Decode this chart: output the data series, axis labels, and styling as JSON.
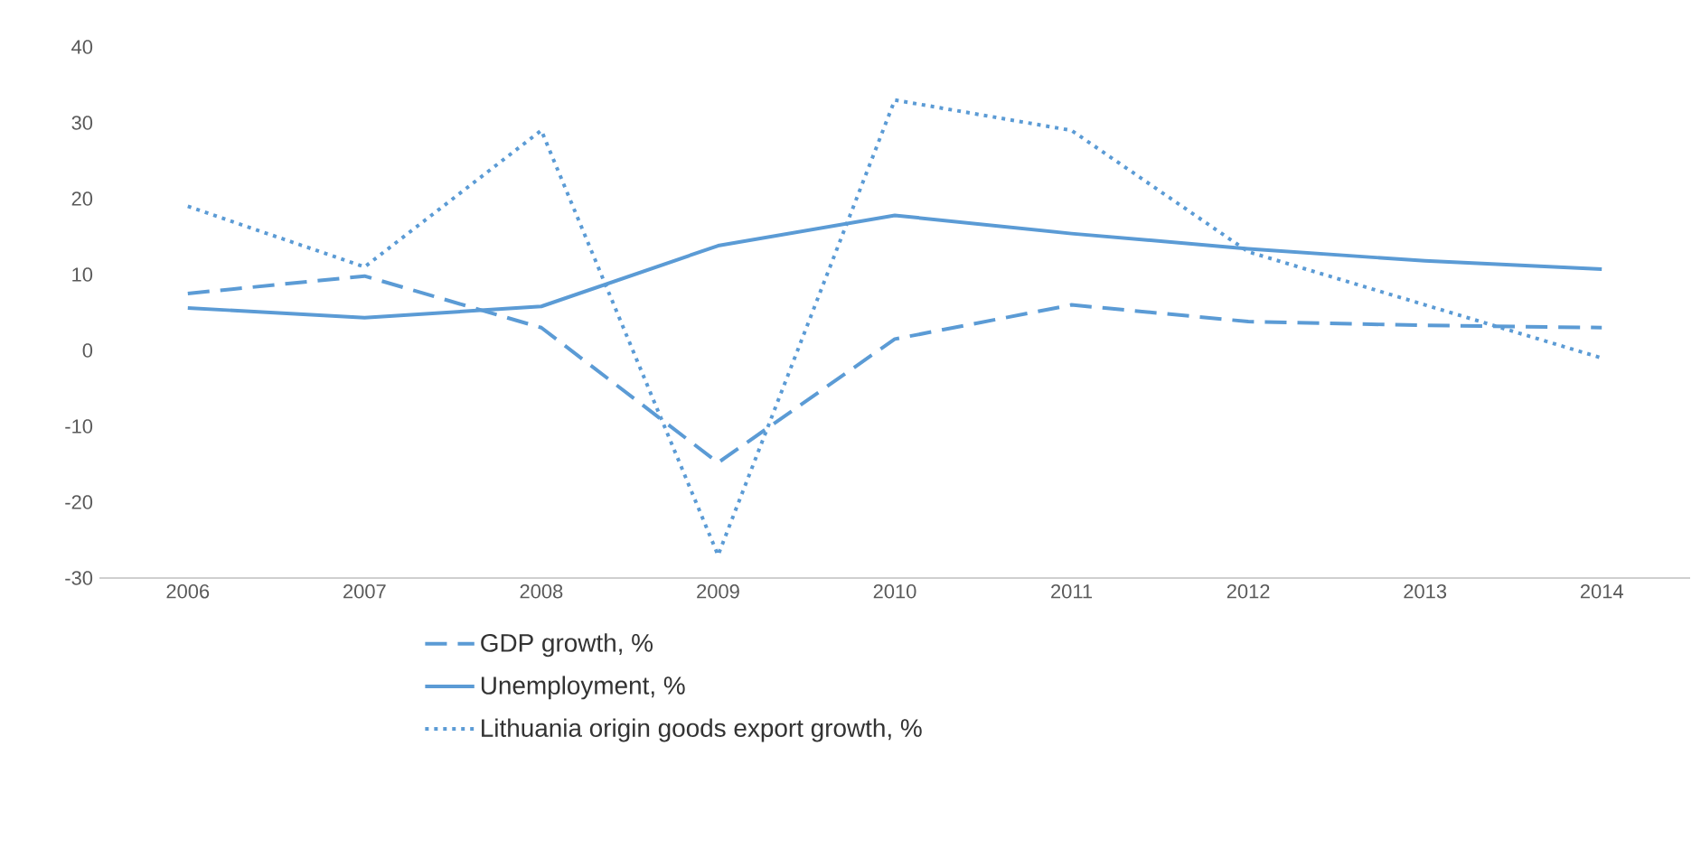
{
  "chart_data": {
    "type": "line",
    "categories": [
      "2006",
      "2007",
      "2008",
      "2009",
      "2010",
      "2011",
      "2012",
      "2013",
      "2014"
    ],
    "series": [
      {
        "name": "GDP growth, %",
        "color": "#5b9bd5",
        "line_style": "dashed",
        "values": [
          7.5,
          9.8,
          3,
          -14.8,
          1.5,
          6,
          3.8,
          3.3,
          3
        ]
      },
      {
        "name": "Unemployment, %",
        "color": "#5b9bd5",
        "line_style": "solid",
        "values": [
          5.6,
          4.3,
          5.8,
          13.8,
          17.8,
          15.4,
          13.4,
          11.8,
          10.7
        ]
      },
      {
        "name": "Lithuania origin goods export growth, %",
        "color": "#5b9bd5",
        "line_style": "dotted",
        "values": [
          19,
          11,
          29,
          -27,
          33,
          29,
          13,
          6,
          -1
        ]
      }
    ],
    "ylim": [
      -30,
      40
    ],
    "yticks": [
      -30,
      -20,
      -10,
      0,
      10,
      20,
      30,
      40
    ],
    "grid": false,
    "legend": "bottom",
    "marker": "none"
  }
}
